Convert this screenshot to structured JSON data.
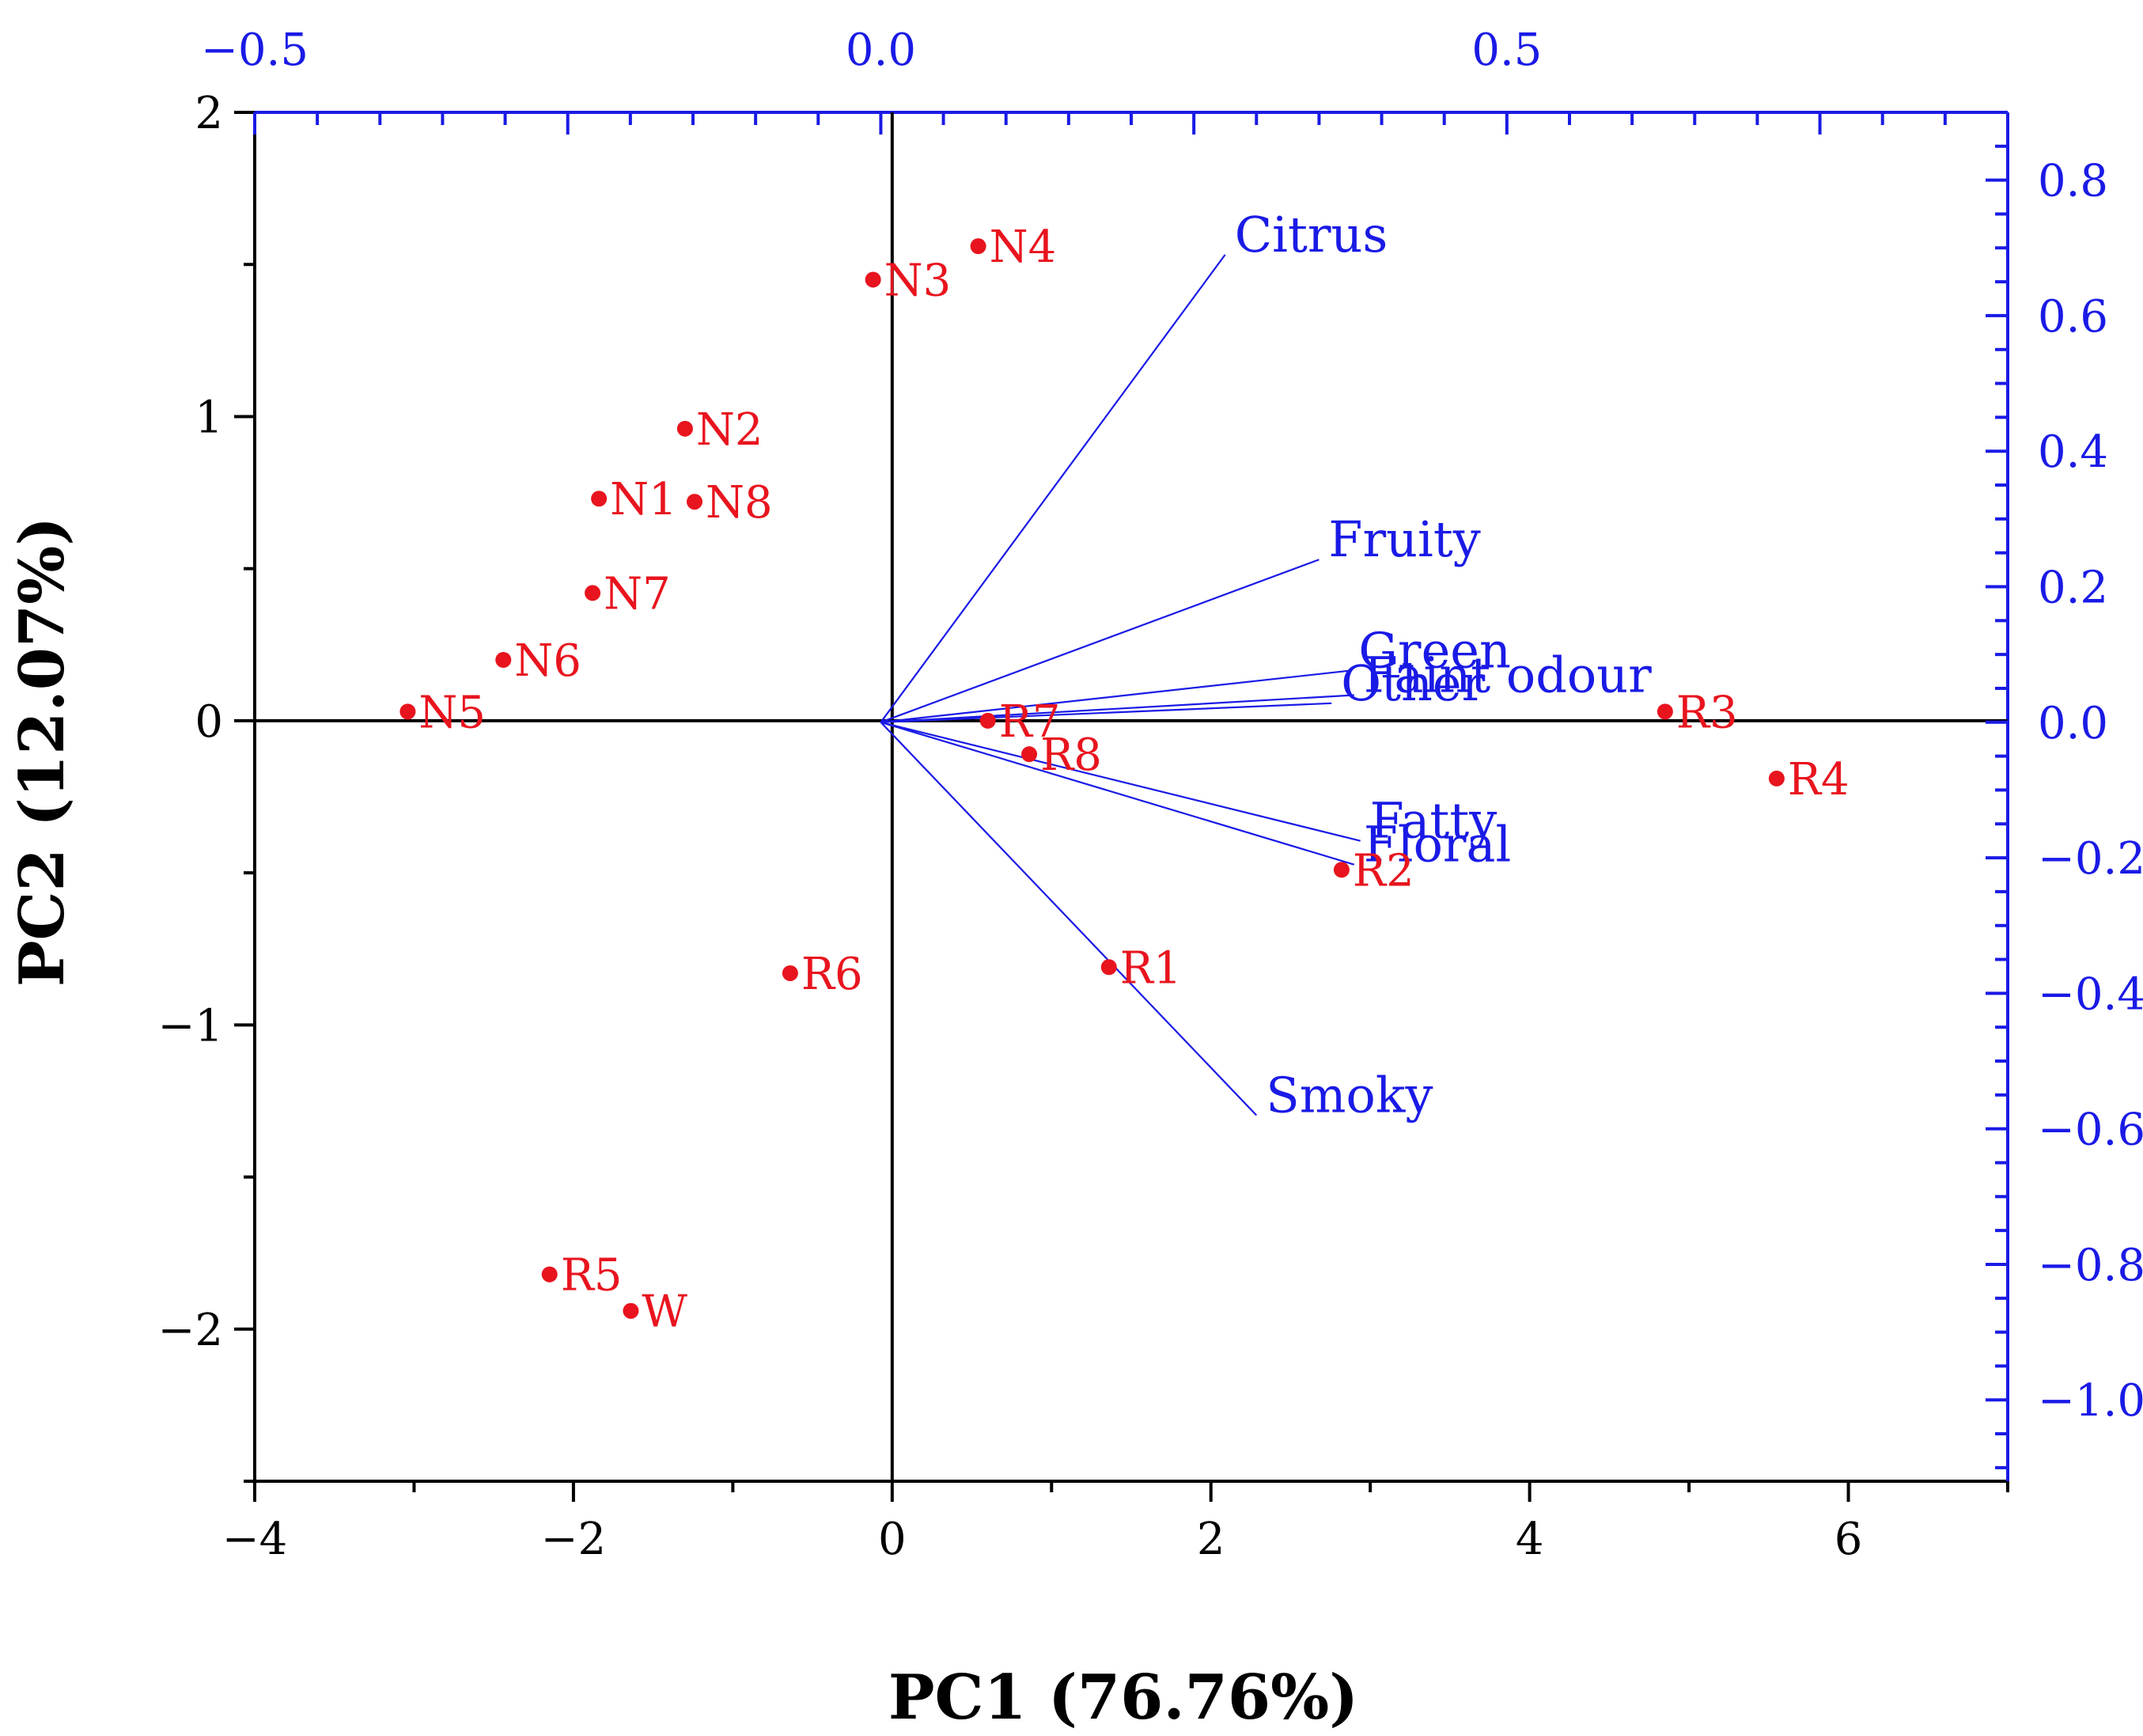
{
  "chart_data": {
    "type": "scatter",
    "subtype": "pca-biplot",
    "xlabel": "PC1 (76.76%)",
    "ylabel": "PC2 (12.07%)",
    "xlim": [
      -4.0,
      7.0
    ],
    "ylim": [
      -2.5,
      2.0
    ],
    "x_ticks": [
      -4,
      -2,
      0,
      2,
      4,
      6
    ],
    "x_tick_labels": [
      "−4",
      "−2",
      "0",
      "2",
      "4",
      "6"
    ],
    "y_ticks": [
      -2,
      -1,
      0,
      1,
      2
    ],
    "y_tick_labels": [
      "−2",
      "−1",
      "0",
      "1",
      "2"
    ],
    "top_axis": {
      "lim": [
        -0.5,
        0.9
      ],
      "ticks": [
        -0.5,
        0.0,
        0.5
      ],
      "tick_labels": [
        "−0.5",
        "0.0",
        "0.5"
      ]
    },
    "right_axis": {
      "lim": [
        -1.12,
        0.9
      ],
      "ticks": [
        0.8,
        0.6,
        0.4,
        0.2,
        0.0,
        -0.2,
        -0.4,
        -0.6,
        -0.8,
        -1.0
      ],
      "tick_labels": [
        "0.8",
        "0.6",
        "0.4",
        "0.2",
        "0.0",
        "−0.2",
        "−0.4",
        "−0.6",
        "−0.8",
        "−1.0"
      ]
    },
    "scores": [
      {
        "label": "N4",
        "x": 0.54,
        "y": 1.56
      },
      {
        "label": "N3",
        "x": -0.12,
        "y": 1.45
      },
      {
        "label": "N2",
        "x": -1.3,
        "y": 0.96
      },
      {
        "label": "N1",
        "x": -1.84,
        "y": 0.73
      },
      {
        "label": "N8",
        "x": -1.24,
        "y": 0.72
      },
      {
        "label": "N7",
        "x": -1.88,
        "y": 0.42
      },
      {
        "label": "N6",
        "x": -2.44,
        "y": 0.2
      },
      {
        "label": "N5",
        "x": -3.04,
        "y": 0.03
      },
      {
        "label": "R7",
        "x": 0.6,
        "y": 0.0
      },
      {
        "label": "R8",
        "x": 0.86,
        "y": -0.11
      },
      {
        "label": "R3",
        "x": 4.85,
        "y": 0.03
      },
      {
        "label": "R4",
        "x": 5.55,
        "y": -0.19
      },
      {
        "label": "R2",
        "x": 2.82,
        "y": -0.49
      },
      {
        "label": "R1",
        "x": 1.36,
        "y": -0.81
      },
      {
        "label": "R6",
        "x": -0.64,
        "y": -0.83
      },
      {
        "label": "R5",
        "x": -2.15,
        "y": -1.82
      },
      {
        "label": "W",
        "x": -1.64,
        "y": -1.94
      }
    ],
    "loadings": [
      {
        "label": "Citrus",
        "x": 0.275,
        "y": 0.69
      },
      {
        "label": "Fruity",
        "x": 0.35,
        "y": 0.24
      },
      {
        "label": "Green",
        "x": 0.374,
        "y": 0.076
      },
      {
        "label": "Faint odour",
        "x": 0.378,
        "y": 0.04
      },
      {
        "label": "Other",
        "x": 0.36,
        "y": 0.028
      },
      {
        "label": "Fatty",
        "x": 0.383,
        "y": -0.175
      },
      {
        "label": "Floral",
        "x": 0.378,
        "y": -0.21
      },
      {
        "label": "Smoky",
        "x": 0.3,
        "y": -0.58
      }
    ],
    "colors": {
      "scores": "#e8141e",
      "loadings": "#1a1ae6",
      "axes": "#000000"
    }
  }
}
